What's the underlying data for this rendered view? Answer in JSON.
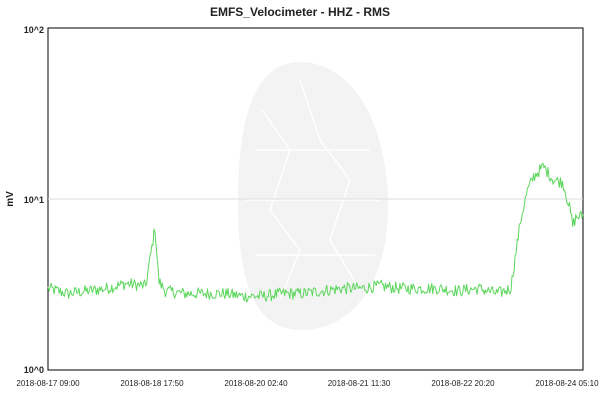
{
  "chart_data": {
    "type": "line",
    "title": "EMFS_Velocimeter - HHZ - RMS",
    "xlabel": "",
    "ylabel": "mV",
    "y_scale": "log",
    "ylim": [
      1,
      100
    ],
    "yticks": [
      "10^0",
      "10^1",
      "10^2"
    ],
    "xticks": [
      "2018-08-17 09:00",
      "2018-08-18 17:50",
      "2018-08-20 02:40",
      "2018-08-21 11:30",
      "2018-08-22 20:20",
      "2018-08-24 05:10"
    ],
    "grid": "horizontal at 10^1",
    "line_color": "#5cd65c",
    "series": [
      {
        "x": [
          "2018-08-17 09:00",
          "2018-08-17 15:00",
          "2018-08-17 21:00",
          "2018-08-18 03:00",
          "2018-08-18 09:00",
          "2018-08-18 15:00",
          "2018-08-18 17:50",
          "2018-08-18 19:00",
          "2018-08-18 21:00",
          "2018-08-19 03:00",
          "2018-08-19 09:00",
          "2018-08-19 15:00",
          "2018-08-19 21:00",
          "2018-08-20 03:00",
          "2018-08-20 09:00",
          "2018-08-20 15:00",
          "2018-08-20 21:00",
          "2018-08-21 03:00",
          "2018-08-21 09:00",
          "2018-08-21 15:00",
          "2018-08-21 21:00",
          "2018-08-22 03:00",
          "2018-08-22 09:00",
          "2018-08-22 15:00",
          "2018-08-22 21:00",
          "2018-08-23 03:00",
          "2018-08-23 07:00",
          "2018-08-23 10:00",
          "2018-08-23 12:00",
          "2018-08-23 14:00",
          "2018-08-23 17:00",
          "2018-08-23 20:00",
          "2018-08-23 23:00",
          "2018-08-24 01:00",
          "2018-08-24 02:00",
          "2018-08-24 03:00",
          "2018-08-24 05:10"
        ],
        "values": [
          3.0,
          2.8,
          2.9,
          3.0,
          3.2,
          3.1,
          6.8,
          3.3,
          2.9,
          2.8,
          2.8,
          2.8,
          2.7,
          2.7,
          2.8,
          2.8,
          2.9,
          3.0,
          3.0,
          3.1,
          3.0,
          3.0,
          3.0,
          2.9,
          3.0,
          2.8,
          3.0,
          7.5,
          11.0,
          13.5,
          15.5,
          13.0,
          12.5,
          9.0,
          7.0,
          7.8,
          8.0
        ]
      }
    ]
  }
}
